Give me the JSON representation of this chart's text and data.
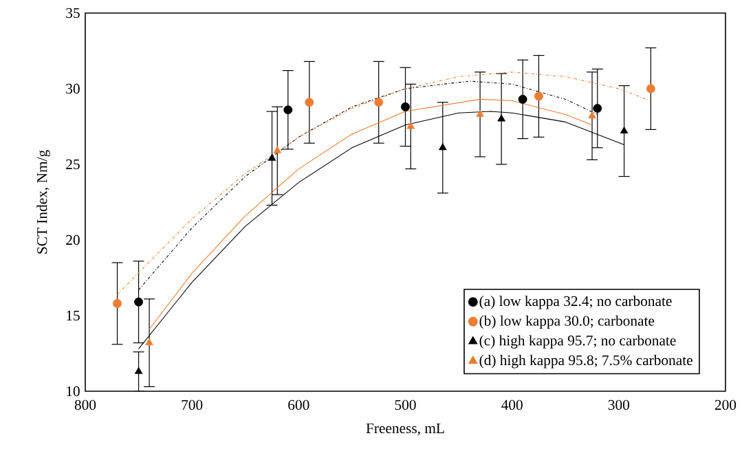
{
  "chart_data": {
    "type": "scatter",
    "xlabel": "Freeness, mL",
    "ylabel": "SCT Index, Nm/g",
    "xlim": [
      800,
      200
    ],
    "ylim": [
      10,
      35
    ],
    "xticks": [
      800,
      700,
      600,
      500,
      400,
      300,
      200
    ],
    "yticks": [
      10,
      15,
      20,
      25,
      30,
      35
    ],
    "grid": false,
    "legend": "bottom right",
    "series": [
      {
        "name": "(a) low kappa 32.4; no carbonate",
        "color": "#000000",
        "marker": "circle",
        "x": [
          750,
          610,
          500,
          390,
          320
        ],
        "values": [
          15.9,
          28.6,
          28.8,
          29.3,
          28.7
        ],
        "errors": [
          2.7,
          2.6,
          2.6,
          2.6,
          2.6
        ]
      },
      {
        "name": "(b) low kappa 30.0; carbonate",
        "color": "#ed7d31",
        "marker": "circle",
        "x": [
          770,
          590,
          525,
          375,
          270
        ],
        "values": [
          15.8,
          29.1,
          29.1,
          29.5,
          30.0
        ],
        "errors": [
          2.7,
          2.7,
          2.7,
          2.7,
          2.7
        ]
      },
      {
        "name": "(c) high kappa 95.7; no carbonate",
        "color": "#000000",
        "marker": "triangle",
        "x": [
          750,
          625,
          465,
          410,
          295
        ],
        "values": [
          11.3,
          25.4,
          26.1,
          28.0,
          27.2
        ],
        "errors": [
          1.3,
          3.1,
          3.0,
          3.0,
          3.0
        ]
      },
      {
        "name": "(d) high kappa 95.8; 7.5% carbonate",
        "color": "#ed7d31",
        "marker": "triangle",
        "x": [
          740,
          620,
          495,
          430,
          325
        ],
        "values": [
          13.2,
          25.9,
          27.5,
          28.3,
          28.2
        ],
        "errors": [
          2.9,
          2.9,
          2.8,
          2.8,
          2.9
        ]
      },
      {
        "type": "line",
        "color": "#000000",
        "line_style": "dashed",
        "marker": "none",
        "x": [
          750,
          700,
          650,
          600,
          550,
          500,
          440,
          400,
          350,
          320
        ],
        "values": [
          16.7,
          20.8,
          24.2,
          26.8,
          28.8,
          30.0,
          30.5,
          30.3,
          29.3,
          28.3
        ]
      },
      {
        "type": "line",
        "color": "#ed7d31",
        "line_style": "dashed",
        "marker": "none",
        "x": [
          770,
          700,
          650,
          600,
          550,
          500,
          450,
          400,
          350,
          300,
          270
        ],
        "values": [
          16.4,
          21.4,
          24.4,
          26.8,
          28.7,
          30.0,
          30.8,
          31.1,
          30.8,
          30.0,
          29.2
        ]
      },
      {
        "type": "line",
        "color": "#000000",
        "line_style": "solid",
        "marker": "none",
        "x": [
          750,
          700,
          650,
          600,
          550,
          500,
          450,
          420,
          400,
          350,
          295
        ],
        "values": [
          12.8,
          17.2,
          20.9,
          23.8,
          26.1,
          27.6,
          28.4,
          28.5,
          28.4,
          27.8,
          26.3
        ]
      },
      {
        "type": "line",
        "color": "#ed7d31",
        "line_style": "solid",
        "marker": "none",
        "x": [
          740,
          700,
          650,
          600,
          550,
          500,
          430,
          400,
          350,
          325
        ],
        "values": [
          14.1,
          17.8,
          21.6,
          24.7,
          27.0,
          28.5,
          29.3,
          29.2,
          28.3,
          27.6
        ]
      }
    ]
  }
}
